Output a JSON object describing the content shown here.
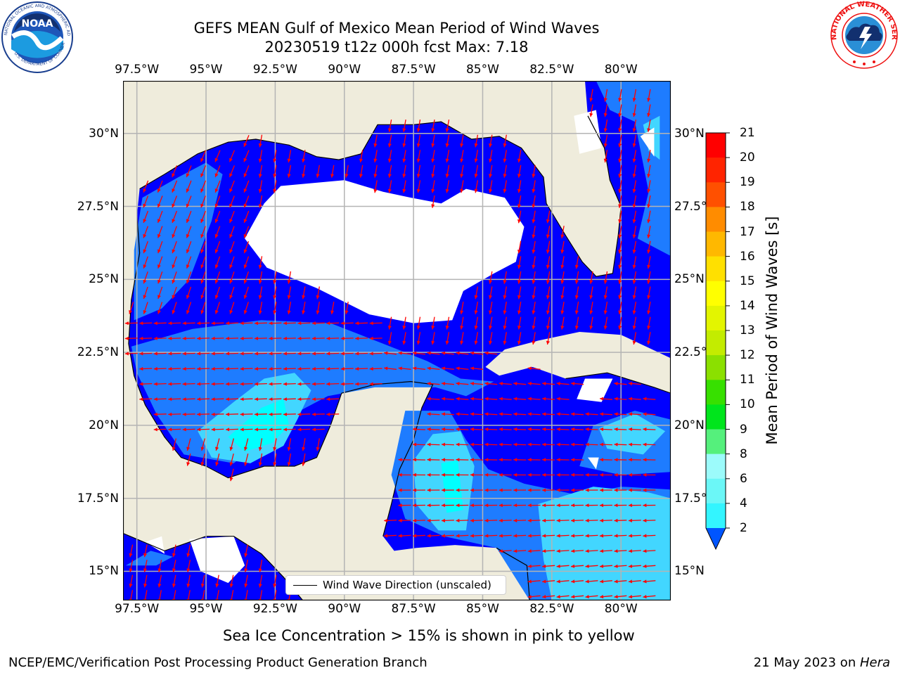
{
  "header": {
    "title_line1": "GEFS MEAN Gulf of Mexico Mean Period of Wind Waves",
    "title_line2": "20230519 t12z 000h fcst   Max: 7.18"
  },
  "map": {
    "lon_labels": [
      "97.5°W",
      "95°W",
      "92.5°W",
      "90°W",
      "87.5°W",
      "85°W",
      "82.5°W",
      "80°W"
    ],
    "lat_labels": [
      "30°N",
      "27.5°N",
      "25°N",
      "22.5°N",
      "20°N",
      "17.5°N",
      "15°N"
    ],
    "lon_range": [
      -98,
      -78.2
    ],
    "lat_range": [
      14,
      31.8
    ],
    "colors": {
      "land": "#efecdc",
      "no_data": "#ffffff",
      "band_2_4": "#0000ff",
      "band_4_6": "#1e7cff",
      "band_6_8": "#42d6ff",
      "band_8_9": "#00ffff",
      "arrow": "#ff0000",
      "coast": "#000000",
      "grid": "#b4b4b4"
    }
  },
  "legend": {
    "label": "Wind Wave Direction (unscaled)"
  },
  "colorbar": {
    "label": "Mean Period of Wind Waves [s]",
    "ticks": [
      "2",
      "4",
      "6",
      "8",
      "9",
      "10",
      "11",
      "12",
      "13",
      "14",
      "15",
      "16",
      "17",
      "18",
      "19",
      "20",
      "21"
    ],
    "colors": [
      "#0055ff",
      "#00e5ff",
      "#33f5ff",
      "#6bf7f7",
      "#9cfbfb",
      "#55f07c",
      "#00e51c",
      "#37e000",
      "#8be000",
      "#c3ec00",
      "#e3f500",
      "#ffff00",
      "#ffe000",
      "#ffb800",
      "#ff8c00",
      "#ff5000",
      "#ff2400",
      "#ff0000"
    ]
  },
  "logos": {
    "noaa_text": "NOAA",
    "noaa_ring_text": "NATIONAL OCEANIC AND ATMOSPHERIC ADMINISTRATION",
    "noaa_ring_bottom": "U.S. DEPARTMENT OF COMMERCE",
    "nws_ring_text": "NATIONAL WEATHER SERVICE"
  },
  "footer": {
    "note": "Sea Ice Concentration > 15% is shown in pink to yellow",
    "left": "NCEP/EMC/Verification Post Processing Product Generation Branch",
    "date": "21 May 2023 on ",
    "machine": "Hera"
  }
}
